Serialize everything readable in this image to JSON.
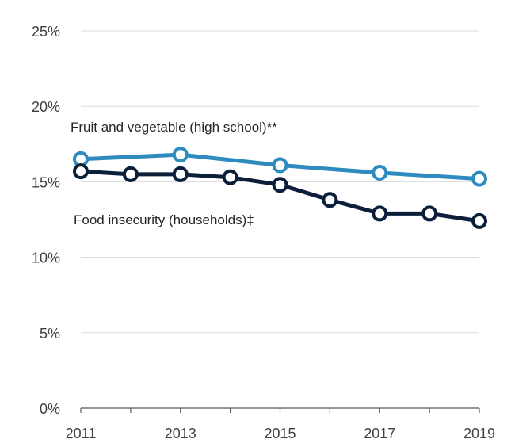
{
  "chart_data": {
    "type": "line",
    "title": "",
    "xlabel": "",
    "ylabel": "",
    "x": [
      2011,
      2012,
      2013,
      2014,
      2015,
      2016,
      2017,
      2018,
      2019
    ],
    "x_tick_labels": [
      "2011",
      "2013",
      "2015",
      "2017",
      "2019"
    ],
    "y_tick_labels": [
      "0%",
      "5%",
      "10%",
      "15%",
      "20%",
      "25%"
    ],
    "ylim": [
      0,
      25
    ],
    "grid": true,
    "legend": "none",
    "series": [
      {
        "name": "Fruit and vegetable (high school)**",
        "color": "#2e8bc0",
        "x": [
          2011,
          2013,
          2015,
          2017,
          2019
        ],
        "values": [
          16.5,
          16.8,
          16.1,
          15.6,
          15.2
        ]
      },
      {
        "name": "Food insecurity (households)‡",
        "color": "#0b1e3a",
        "x": [
          2011,
          2012,
          2013,
          2014,
          2015,
          2016,
          2017,
          2018,
          2019
        ],
        "values": [
          15.7,
          15.5,
          15.5,
          15.3,
          14.8,
          13.8,
          12.9,
          12.9,
          12.4
        ]
      }
    ]
  }
}
